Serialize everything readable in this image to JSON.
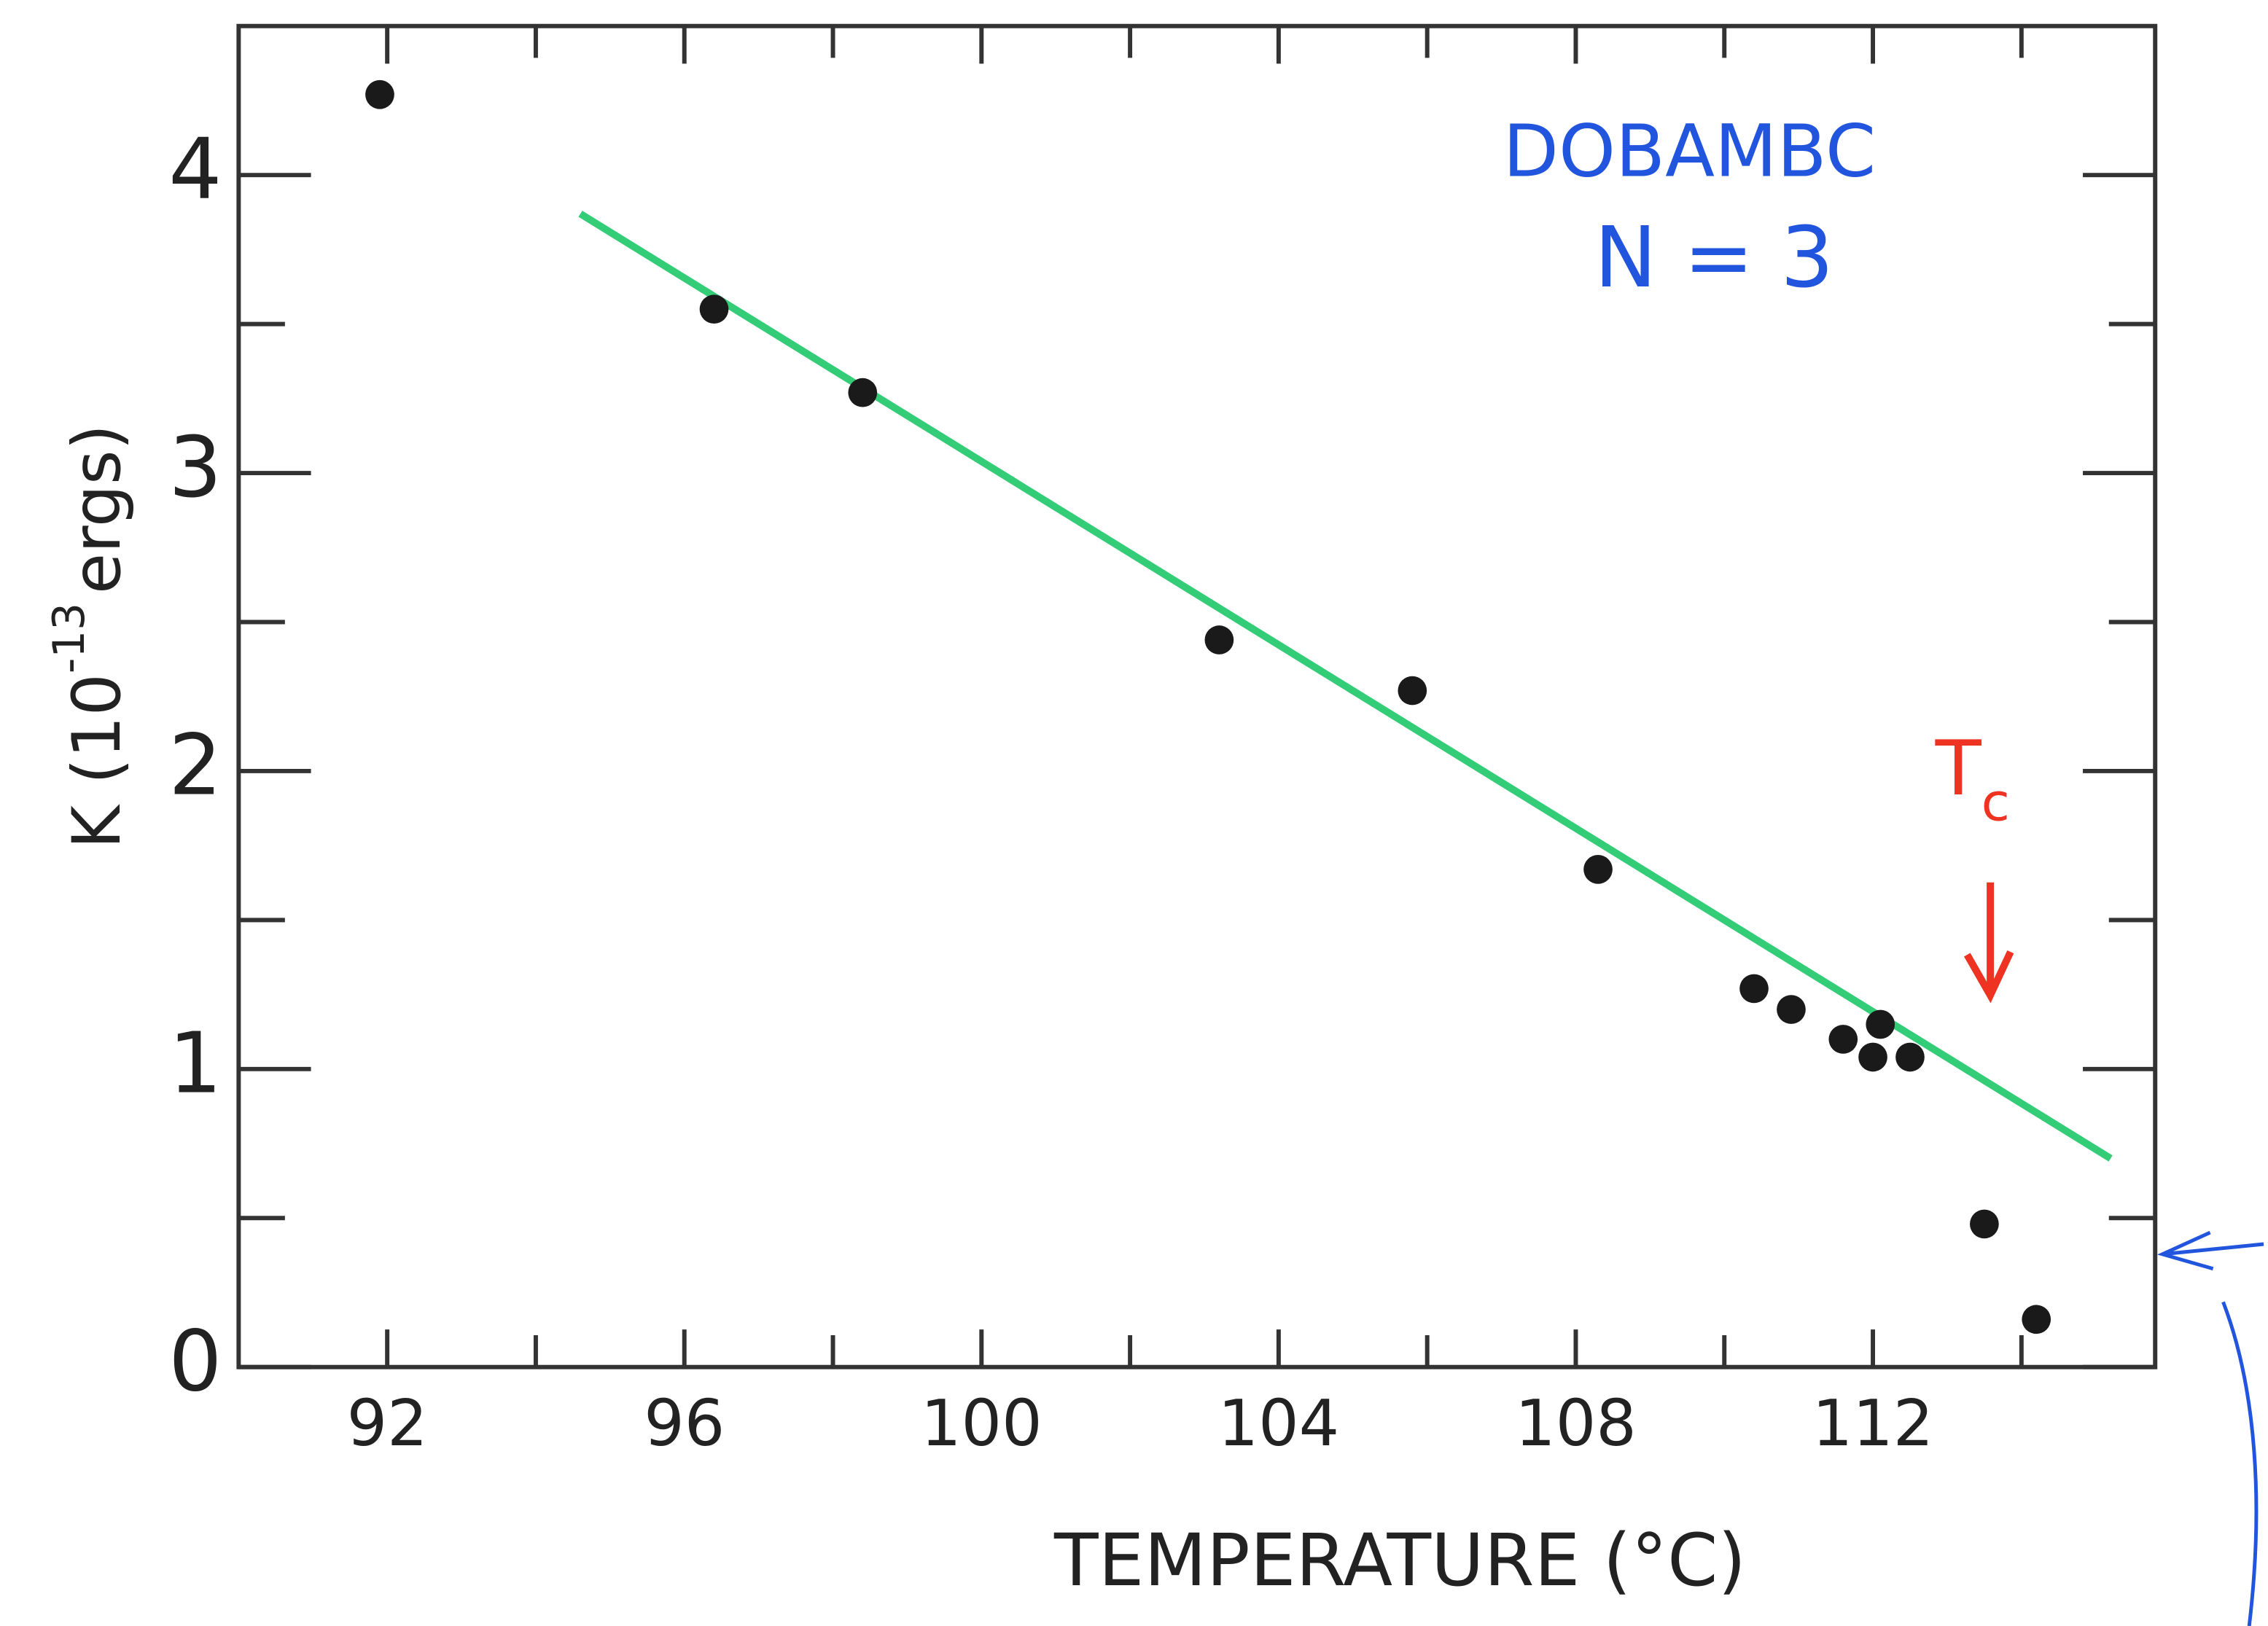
{
  "chart_data": {
    "type": "scatter",
    "title": "DOBAMBC",
    "subtitle": "N = 3",
    "x_label": "TEMPERATURE (°C)",
    "y_label": {
      "main": "K (10",
      "superscript": "-13",
      "unit": "ergs)"
    },
    "annotation": {
      "text": "T",
      "subscript": "c"
    },
    "x": [
      91.9,
      96.4,
      98.4,
      103.2,
      105.8,
      108.3,
      110.4,
      110.9,
      111.6,
      112.0,
      112.1,
      112.5,
      113.5,
      114.2
    ],
    "values": [
      4.27,
      3.55,
      3.27,
      2.44,
      2.27,
      1.67,
      1.27,
      1.2,
      1.1,
      1.04,
      1.15,
      1.04,
      0.48,
      0.16
    ],
    "color": "#1a1a1a",
    "fit_line": {
      "x": [
        94.6,
        115.2
      ],
      "values": [
        3.87,
        0.7
      ],
      "color": "#33cc77"
    },
    "xlim": [
      90,
      115.8
    ],
    "ylim": [
      0,
      4.5
    ],
    "xticks": [
      92,
      96,
      100,
      104,
      108,
      112
    ],
    "xminorticks": [
      94,
      98,
      102,
      106,
      110,
      114
    ],
    "yticks": [
      0,
      1,
      2,
      3,
      4
    ],
    "yminorticks": [
      0.5,
      1.5,
      2.5,
      3.5
    ],
    "title_color": "#2255dd",
    "annotation_color": "#ee3322"
  }
}
